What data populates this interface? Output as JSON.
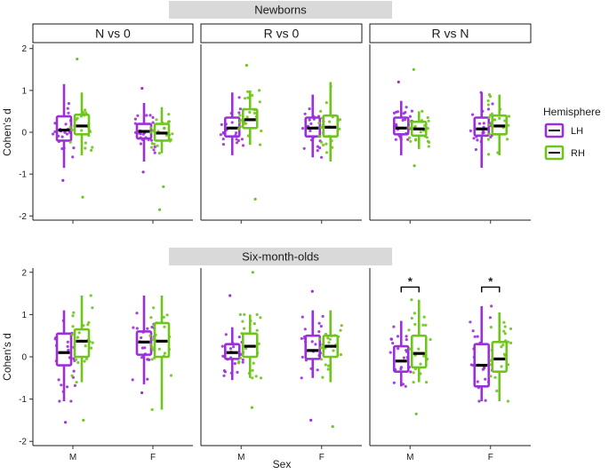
{
  "chart_data": {
    "type": "boxplot",
    "xlabel": "Sex",
    "ylabel": "Cohen's d",
    "ylim": [
      -2.1,
      2.1
    ],
    "y_ticks": [
      "-2",
      "-1",
      "0",
      "1",
      "2"
    ],
    "x_categories": [
      "M",
      "F"
    ],
    "legend": {
      "title": "Hemisphere",
      "placement": "right",
      "entries": [
        {
          "name": "LH",
          "color": "#9b30d9"
        },
        {
          "name": "RH",
          "color": "#6fc51b"
        }
      ]
    },
    "groups": [
      {
        "title": "Newborns",
        "facets": [
          {
            "label": "N vs 0",
            "boxes": [
              {
                "sex": "M",
                "hemi": "LH",
                "min": -0.85,
                "q1": -0.2,
                "median": 0.05,
                "q3": 0.38,
                "max": 1.15,
                "outliers": [
                  -1.15
                ]
              },
              {
                "sex": "M",
                "hemi": "RH",
                "min": -0.55,
                "q1": -0.05,
                "median": 0.15,
                "q3": 0.42,
                "max": 0.95,
                "outliers": [
                  1.75,
                  -1.55
                ]
              },
              {
                "sex": "F",
                "hemi": "LH",
                "min": -0.7,
                "q1": -0.15,
                "median": 0.02,
                "q3": 0.2,
                "max": 0.7,
                "outliers": [
                  1.05,
                  -0.95
                ]
              },
              {
                "sex": "F",
                "hemi": "RH",
                "min": -0.5,
                "q1": -0.2,
                "median": -0.02,
                "q3": 0.2,
                "max": 0.6,
                "outliers": [
                  -1.85,
                  -1.3
                ]
              }
            ]
          },
          {
            "label": "R vs 0",
            "boxes": [
              {
                "sex": "M",
                "hemi": "LH",
                "min": -0.55,
                "q1": -0.1,
                "median": 0.1,
                "q3": 0.35,
                "max": 0.95,
                "outliers": []
              },
              {
                "sex": "M",
                "hemi": "RH",
                "min": -0.3,
                "q1": 0.1,
                "median": 0.3,
                "q3": 0.55,
                "max": 1.0,
                "outliers": [
                  1.6,
                  -1.6
                ]
              },
              {
                "sex": "F",
                "hemi": "LH",
                "min": -0.6,
                "q1": -0.1,
                "median": 0.1,
                "q3": 0.35,
                "max": 0.9,
                "outliers": []
              },
              {
                "sex": "F",
                "hemi": "RH",
                "min": -0.7,
                "q1": -0.1,
                "median": 0.12,
                "q3": 0.4,
                "max": 1.2,
                "outliers": []
              }
            ]
          },
          {
            "label": "R vs N",
            "boxes": [
              {
                "sex": "M",
                "hemi": "LH",
                "min": -0.55,
                "q1": -0.05,
                "median": 0.1,
                "q3": 0.35,
                "max": 0.75,
                "outliers": [
                  1.2
                ]
              },
              {
                "sex": "M",
                "hemi": "RH",
                "min": -0.4,
                "q1": -0.08,
                "median": 0.08,
                "q3": 0.25,
                "max": 0.5,
                "outliers": [
                  1.5,
                  -0.8
                ]
              },
              {
                "sex": "F",
                "hemi": "LH",
                "min": -0.85,
                "q1": -0.08,
                "median": 0.08,
                "q3": 0.35,
                "max": 0.95,
                "outliers": []
              },
              {
                "sex": "F",
                "hemi": "RH",
                "min": -0.55,
                "q1": -0.05,
                "median": 0.15,
                "q3": 0.4,
                "max": 0.9,
                "outliers": []
              }
            ]
          }
        ]
      },
      {
        "title": "Six-month-olds",
        "facets": [
          {
            "label": "N vs 0",
            "boxes": [
              {
                "sex": "M",
                "hemi": "LH",
                "min": -1.05,
                "q1": -0.2,
                "median": 0.1,
                "q3": 0.55,
                "max": 1.1,
                "outliers": [
                  -1.55
                ]
              },
              {
                "sex": "M",
                "hemi": "RH",
                "min": -0.6,
                "q1": 0.0,
                "median": 0.37,
                "q3": 0.65,
                "max": 1.45,
                "outliers": [
                  -1.5
                ]
              },
              {
                "sex": "F",
                "hemi": "LH",
                "min": -0.65,
                "q1": 0.05,
                "median": 0.35,
                "q3": 0.6,
                "max": 1.45,
                "outliers": [
                  -0.85
                ]
              },
              {
                "sex": "F",
                "hemi": "RH",
                "min": -1.25,
                "q1": 0.0,
                "median": 0.37,
                "q3": 0.8,
                "max": 1.45,
                "outliers": []
              }
            ]
          },
          {
            "label": "R vs 0",
            "boxes": [
              {
                "sex": "M",
                "hemi": "LH",
                "min": -0.55,
                "q1": -0.05,
                "median": 0.1,
                "q3": 0.3,
                "max": 0.7,
                "outliers": [
                  1.45
                ]
              },
              {
                "sex": "M",
                "hemi": "RH",
                "min": -0.5,
                "q1": 0.0,
                "median": 0.25,
                "q3": 0.55,
                "max": 1.0,
                "outliers": [
                  2.0,
                  -1.2
                ]
              },
              {
                "sex": "F",
                "hemi": "LH",
                "min": -0.5,
                "q1": -0.05,
                "median": 0.15,
                "q3": 0.5,
                "max": 1.1,
                "outliers": [
                  1.55,
                  -1.5
                ]
              },
              {
                "sex": "F",
                "hemi": "RH",
                "min": -0.6,
                "q1": 0.0,
                "median": 0.25,
                "q3": 0.5,
                "max": 1.1,
                "outliers": [
                  -1.65
                ]
              }
            ]
          },
          {
            "label": "R vs N",
            "boxes": [
              {
                "sex": "M",
                "hemi": "LH",
                "min": -0.7,
                "q1": -0.35,
                "median": -0.1,
                "q3": 0.25,
                "max": 0.85,
                "outliers": []
              },
              {
                "sex": "M",
                "hemi": "RH",
                "min": -0.6,
                "q1": -0.25,
                "median": 0.08,
                "q3": 0.5,
                "max": 1.35,
                "outliers": [
                  -1.35
                ]
              },
              {
                "sex": "F",
                "hemi": "LH",
                "min": -1.05,
                "q1": -0.7,
                "median": -0.2,
                "q3": 0.3,
                "max": 1.2,
                "outliers": []
              },
              {
                "sex": "F",
                "hemi": "RH",
                "min": -1.05,
                "q1": -0.35,
                "median": -0.05,
                "q3": 0.35,
                "max": 1.05,
                "outliers": []
              }
            ],
            "significance": [
              {
                "sex": "M",
                "label": "*"
              },
              {
                "sex": "F",
                "label": "*"
              }
            ]
          }
        ]
      }
    ]
  }
}
